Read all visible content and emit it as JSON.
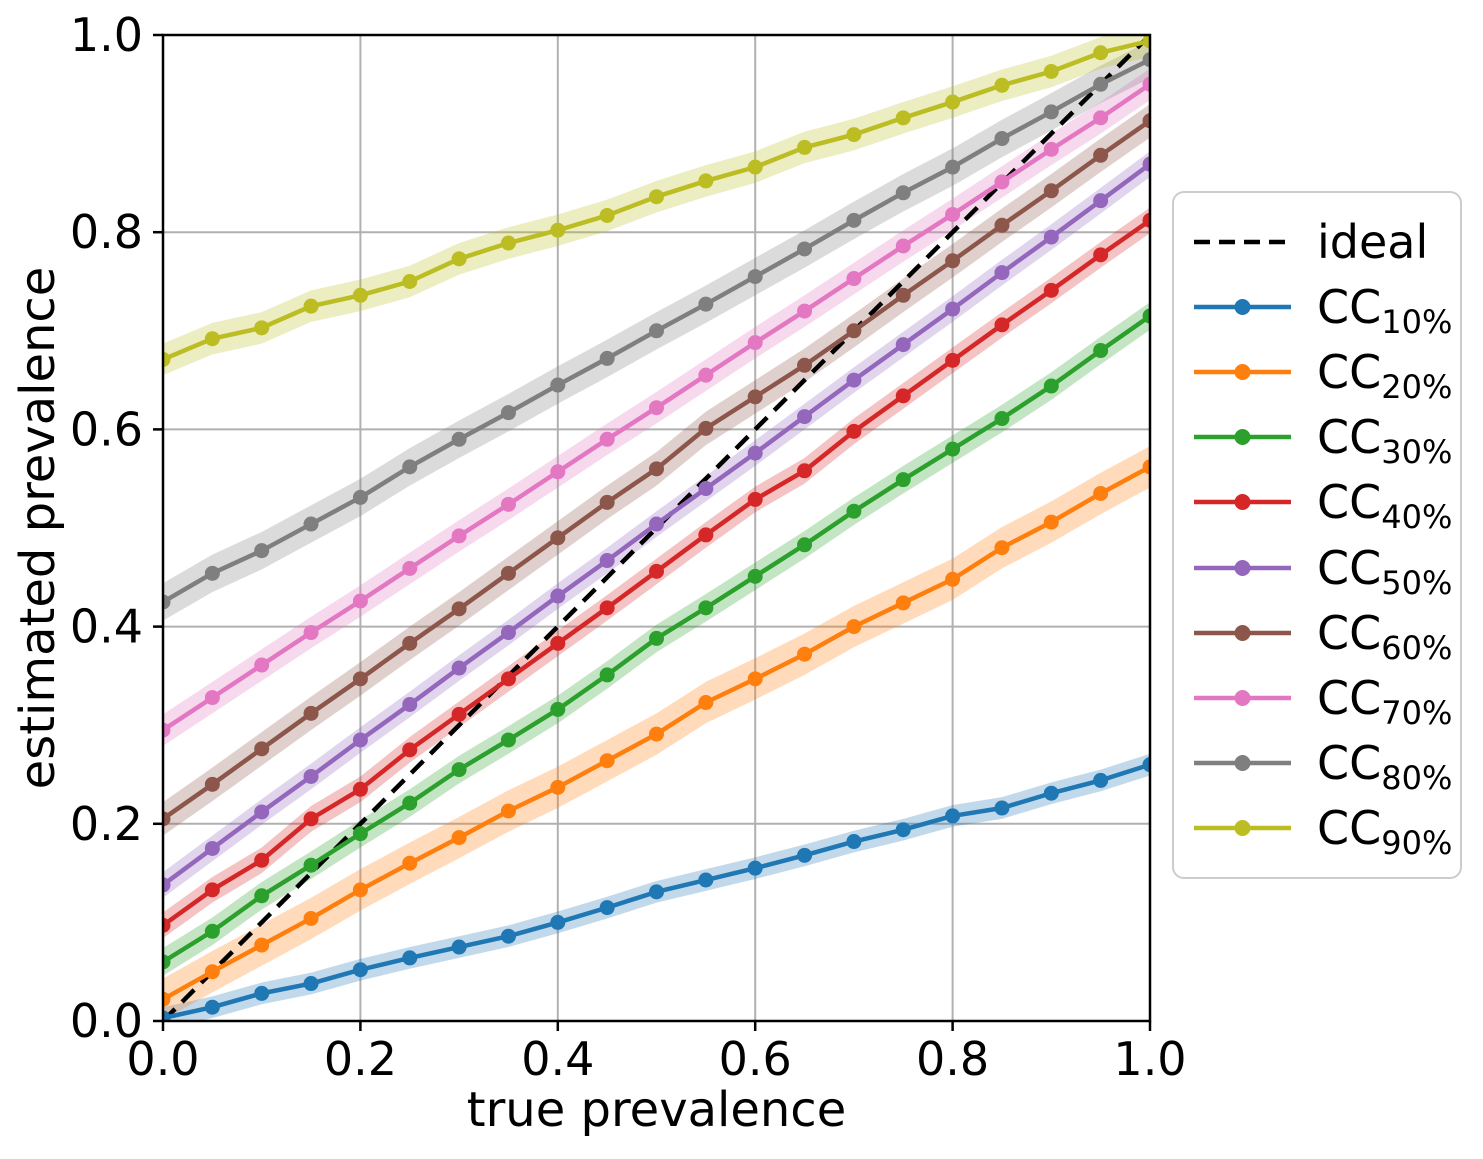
{
  "figure": {
    "background": "#ffffff"
  },
  "chart_data": {
    "type": "line",
    "title": "",
    "xlabel": "true prevalence",
    "ylabel": "estimated prevalence",
    "xlim": [
      0,
      1
    ],
    "ylim": [
      0,
      1
    ],
    "grid": true,
    "legend_position": "outside-right",
    "xtick_labels": [
      "0.0",
      "0.2",
      "0.4",
      "0.6",
      "0.8",
      "1.0"
    ],
    "ytick_labels": [
      "0.0",
      "0.2",
      "0.4",
      "0.6",
      "0.8",
      "1.0"
    ],
    "xtick_values": [
      0,
      0.2,
      0.4,
      0.6,
      0.8,
      1.0
    ],
    "ytick_values": [
      0,
      0.2,
      0.4,
      0.6,
      0.8,
      1.0
    ],
    "x": [
      0,
      0.05,
      0.1,
      0.15,
      0.2,
      0.25,
      0.3,
      0.35,
      0.4,
      0.45,
      0.5,
      0.55,
      0.6,
      0.65,
      0.7,
      0.75,
      0.8,
      0.85,
      0.9,
      0.95,
      1.0
    ],
    "ideal": {
      "label": "ideal",
      "color": "#000000",
      "style": "dashed",
      "x": [
        0,
        1
      ],
      "y": [
        0,
        1
      ]
    },
    "series": [
      {
        "label_main": "CC",
        "label_sub": "10%",
        "color": "#1f77b4",
        "band_halfwidth": 0.011,
        "values": [
          0.003,
          0.014,
          0.028,
          0.038,
          0.052,
          0.064,
          0.075,
          0.086,
          0.1,
          0.115,
          0.131,
          0.143,
          0.155,
          0.168,
          0.182,
          0.194,
          0.208,
          0.216,
          0.231,
          0.244,
          0.26
        ]
      },
      {
        "label_main": "CC",
        "label_sub": "20%",
        "color": "#ff7f0e",
        "band_halfwidth": 0.021,
        "values": [
          0.022,
          0.05,
          0.077,
          0.104,
          0.133,
          0.16,
          0.186,
          0.213,
          0.237,
          0.264,
          0.291,
          0.323,
          0.347,
          0.372,
          0.4,
          0.424,
          0.448,
          0.48,
          0.506,
          0.535,
          0.562
        ]
      },
      {
        "label_main": "CC",
        "label_sub": "30%",
        "color": "#2ca02c",
        "band_halfwidth": 0.014,
        "values": [
          0.06,
          0.091,
          0.127,
          0.158,
          0.19,
          0.221,
          0.255,
          0.285,
          0.316,
          0.351,
          0.388,
          0.419,
          0.451,
          0.483,
          0.517,
          0.549,
          0.58,
          0.611,
          0.644,
          0.68,
          0.715
        ]
      },
      {
        "label_main": "CC",
        "label_sub": "40%",
        "color": "#d62728",
        "band_halfwidth": 0.013,
        "values": [
          0.097,
          0.133,
          0.163,
          0.205,
          0.235,
          0.275,
          0.311,
          0.347,
          0.383,
          0.419,
          0.456,
          0.493,
          0.529,
          0.558,
          0.598,
          0.634,
          0.67,
          0.706,
          0.741,
          0.777,
          0.812
        ]
      },
      {
        "label_main": "CC",
        "label_sub": "50%",
        "color": "#9467bd",
        "band_halfwidth": 0.013,
        "values": [
          0.138,
          0.175,
          0.212,
          0.248,
          0.285,
          0.321,
          0.358,
          0.394,
          0.431,
          0.467,
          0.504,
          0.54,
          0.576,
          0.613,
          0.65,
          0.686,
          0.722,
          0.759,
          0.795,
          0.832,
          0.869
        ]
      },
      {
        "label_main": "CC",
        "label_sub": "60%",
        "color": "#8c564b",
        "band_halfwidth": 0.017,
        "values": [
          0.205,
          0.24,
          0.276,
          0.312,
          0.347,
          0.383,
          0.418,
          0.454,
          0.49,
          0.526,
          0.56,
          0.601,
          0.633,
          0.665,
          0.7,
          0.736,
          0.771,
          0.807,
          0.842,
          0.878,
          0.913
        ]
      },
      {
        "label_main": "CC",
        "label_sub": "70%",
        "color": "#e377c2",
        "band_halfwidth": 0.016,
        "values": [
          0.295,
          0.328,
          0.361,
          0.394,
          0.426,
          0.459,
          0.492,
          0.524,
          0.557,
          0.59,
          0.622,
          0.655,
          0.688,
          0.72,
          0.753,
          0.786,
          0.818,
          0.851,
          0.884,
          0.916,
          0.95
        ]
      },
      {
        "label_main": "CC",
        "label_sub": "80%",
        "color": "#7f7f7f",
        "band_halfwidth": 0.019,
        "values": [
          0.425,
          0.454,
          0.477,
          0.504,
          0.531,
          0.562,
          0.59,
          0.617,
          0.645,
          0.672,
          0.7,
          0.727,
          0.755,
          0.783,
          0.812,
          0.84,
          0.866,
          0.895,
          0.922,
          0.95,
          0.975
        ]
      },
      {
        "label_main": "CC",
        "label_sub": "90%",
        "color": "#bcbd22",
        "band_halfwidth": 0.016,
        "values": [
          0.671,
          0.692,
          0.703,
          0.725,
          0.736,
          0.75,
          0.773,
          0.789,
          0.802,
          0.817,
          0.836,
          0.852,
          0.866,
          0.886,
          0.899,
          0.916,
          0.932,
          0.949,
          0.963,
          0.982,
          0.994
        ]
      }
    ],
    "colors": {
      "grid": "#b0b0b0",
      "spine": "#000000",
      "legend_border": "#cccccc",
      "background": "#ffffff"
    }
  }
}
